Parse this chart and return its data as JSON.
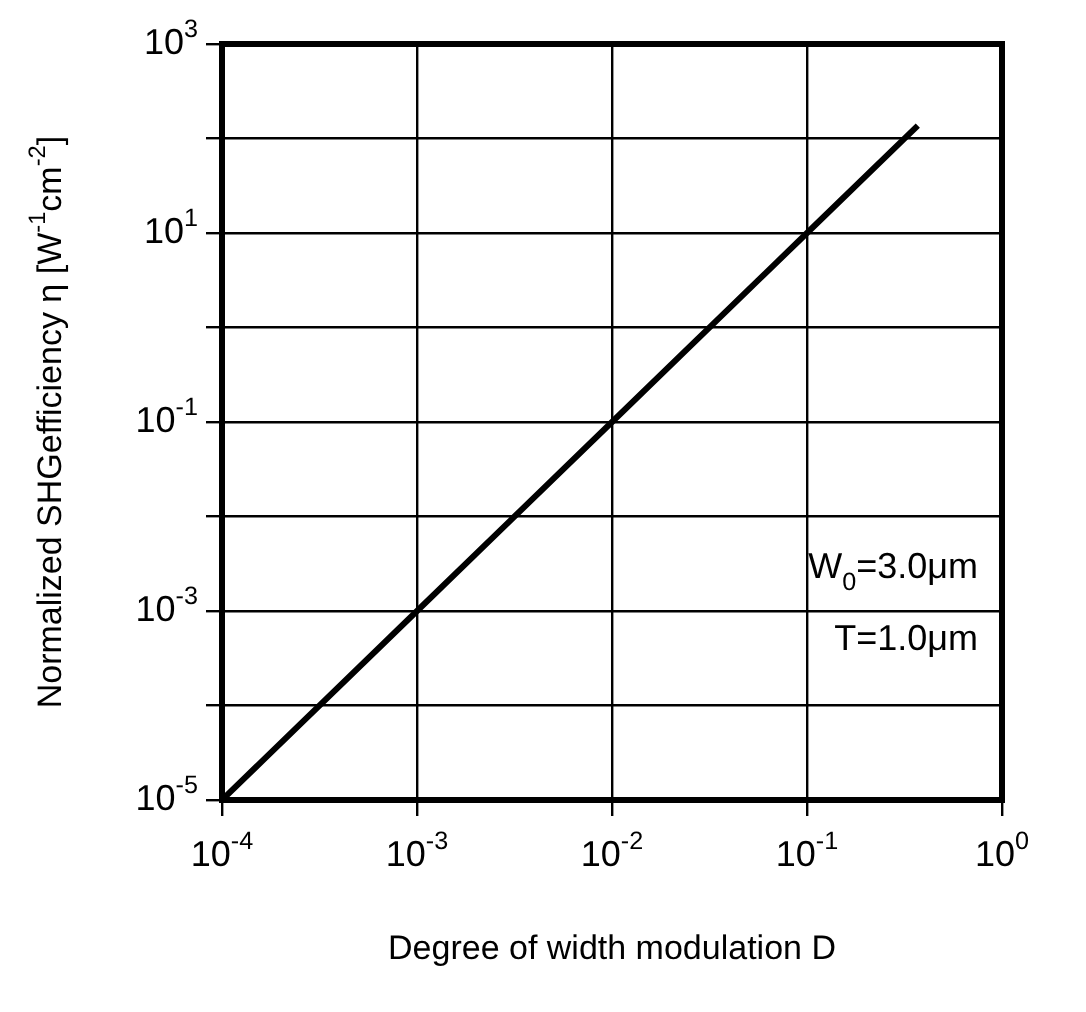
{
  "chart_data": {
    "type": "line",
    "xlabel": "Degree of width modulation D",
    "ylabel": "Normalized SHGefficiency η [W$^{-1}$cm$^{-2}$]",
    "x": [
      0.0001,
      0.001,
      0.01,
      0.1,
      0.37
    ],
    "series": [
      {
        "color": "#000000",
        "values": [
          1e-05,
          0.001,
          0.1,
          10,
          137
        ]
      }
    ],
    "log": "xy",
    "xlim": [
      0.0001,
      1
    ],
    "ylim": [
      1e-05,
      1000
    ],
    "xticks": [
      {
        "value": 0.0001,
        "label": "10$^{-4}$"
      },
      {
        "value": 0.001,
        "label": "10$^{-3}$"
      },
      {
        "value": 0.01,
        "label": "10$^{-2}$"
      },
      {
        "value": 0.1,
        "label": "10$^{-1}$"
      },
      {
        "value": 1,
        "label": "10$^{0}$"
      }
    ],
    "yticks": [
      {
        "value": 1e-05,
        "label": "10$^{-5}$"
      },
      {
        "value": 0.0001,
        "label": null
      },
      {
        "value": 0.001,
        "label": "10$^{-3}$"
      },
      {
        "value": 0.01,
        "label": null
      },
      {
        "value": 0.1,
        "label": "10$^{-1}$"
      },
      {
        "value": 1,
        "label": null
      },
      {
        "value": 10,
        "label": "10$^{1}$"
      },
      {
        "value": 100,
        "label": null
      },
      {
        "value": 1000,
        "label": "10$^{3}$"
      }
    ],
    "grid": true,
    "marker": "none",
    "line_style": "solid",
    "annotations": [
      "W$_{0}$=3.0μm",
      "T=1.0μm"
    ]
  }
}
